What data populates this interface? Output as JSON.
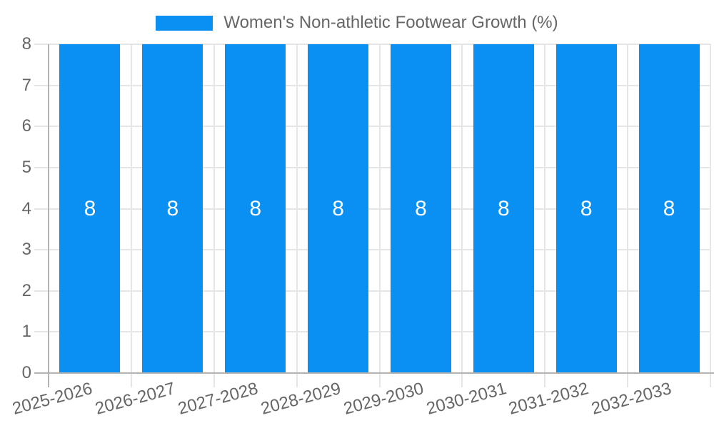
{
  "chart_data": {
    "type": "bar",
    "categories": [
      "2025-2026",
      "2026-2027",
      "2027-2028",
      "2028-2029",
      "2029-2030",
      "2030-2031",
      "2031-2032",
      "2032-2033"
    ],
    "series": [
      {
        "name": "Women's Non-athletic Footwear Growth (%)",
        "color": "#0a8ff2",
        "values": [
          8,
          8,
          8,
          8,
          8,
          8,
          8,
          8
        ]
      }
    ],
    "value_labels": [
      "8",
      "8",
      "8",
      "8",
      "8",
      "8",
      "8",
      "8"
    ],
    "xlabel": "",
    "ylabel": "",
    "ylim": [
      0,
      8
    ],
    "yticks": [
      0,
      1,
      2,
      3,
      4,
      5,
      6,
      7,
      8
    ],
    "legend_position": "top",
    "grid": true,
    "colors": {
      "bar": "#0a8ff2",
      "axis_text": "#666666",
      "gridline": "#e6e6e6",
      "zero_line": "#b3b3b3",
      "value_label": "#ffffff",
      "background": "#ffffff"
    }
  }
}
